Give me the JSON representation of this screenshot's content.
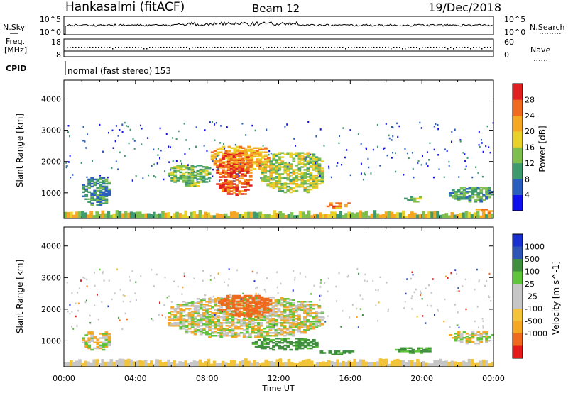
{
  "header": {
    "station": "Hankasalmi (fitACF)",
    "beam": "Beam 12",
    "date": "19/Dec/2018"
  },
  "strip_labels": {
    "n_sky": "N.Sky",
    "n_search": "N.Search",
    "freq": "Freq.",
    "freq_unit": "[MHz]",
    "nave": "Nave",
    "cpid": "CPID"
  },
  "strip_ticks": {
    "nsky_left_top": "10^5",
    "nsky_left_bottom": "10^0",
    "nsky_right_top": "10^5",
    "nsky_right_bottom": "10^0",
    "freq_left_top": "18",
    "freq_left_bottom": "8",
    "nave_right_top": "60",
    "nave_right_bottom": "0"
  },
  "cpid_text": "normal (fast stereo) 153",
  "colors": {
    "power": [
      "#1010ee",
      "#2b5fbf",
      "#3f9a6e",
      "#7fbf4f",
      "#e8d22a",
      "#f5a623",
      "#ef6a1f",
      "#e02020"
    ],
    "velocity": [
      "#e51a1a",
      "#ef6a1f",
      "#f5a623",
      "#f3c43a",
      "#c6c6c6",
      "#c6c6c6",
      "#5ec43a",
      "#3f8f3f",
      "#2f55b5",
      "#1a2fd0"
    ],
    "power_ground": "#5c8a8a"
  },
  "chart_data": [
    {
      "type": "heatmap",
      "name": "power",
      "ylabel": "Slant Range [km]",
      "xlabel": "",
      "x_ticks": [
        "00:00",
        "04:00",
        "08:00",
        "12:00",
        "16:00",
        "20:00",
        "00:00"
      ],
      "x_range_hours": [
        0,
        24
      ],
      "y_ticks": [
        "1000",
        "2000",
        "3000",
        "4000"
      ],
      "y_range_km": [
        180,
        4600
      ],
      "colorbar_label": "Power [dB]",
      "colorbar_ticks": [
        "4",
        "8",
        "12",
        "16",
        "20",
        "24",
        "28"
      ],
      "colorbar_range": [
        0,
        32
      ],
      "echo_regions": [
        {
          "t0": 1.0,
          "t1": 2.6,
          "r0": 600,
          "r1": 1500,
          "dB": 9
        },
        {
          "t0": 5.8,
          "t1": 8.2,
          "r0": 1200,
          "r1": 1900,
          "dB": 13
        },
        {
          "t0": 8.2,
          "t1": 11.5,
          "r0": 1700,
          "r1": 2500,
          "dB": 21
        },
        {
          "t0": 8.5,
          "t1": 10.5,
          "r0": 900,
          "r1": 2300,
          "dB": 27
        },
        {
          "t0": 11.0,
          "t1": 14.5,
          "r0": 1000,
          "r1": 2300,
          "dB": 16
        },
        {
          "t0": 14.5,
          "t1": 16.0,
          "r0": 500,
          "r1": 700,
          "dB": 24
        },
        {
          "t0": 19.0,
          "t1": 20.0,
          "r0": 700,
          "r1": 900,
          "dB": 12
        },
        {
          "t0": 21.5,
          "t1": 24.0,
          "r0": 700,
          "r1": 1200,
          "dB": 11
        },
        {
          "t0": 23.0,
          "t1": 24.0,
          "r0": 350,
          "r1": 500,
          "dB": 26
        }
      ]
    },
    {
      "type": "heatmap",
      "name": "velocity",
      "ylabel": "Slant Range [km]",
      "xlabel": "Time UT",
      "x_ticks": [
        "00:00",
        "04:00",
        "08:00",
        "12:00",
        "16:00",
        "20:00",
        "00:00"
      ],
      "x_range_hours": [
        0,
        24
      ],
      "y_ticks": [
        "1000",
        "2000",
        "3000",
        "4000"
      ],
      "y_range_km": [
        180,
        4600
      ],
      "colorbar_label": "Velocity [m s^-1]",
      "colorbar_ticks": [
        "1000",
        "500",
        "100",
        "25",
        "-25",
        "-100",
        "-500",
        "-1000"
      ],
      "echo_regions": [
        {
          "t0": 1.0,
          "t1": 2.6,
          "r0": 700,
          "r1": 1300,
          "v": 0
        },
        {
          "t0": 5.8,
          "t1": 14.5,
          "r0": 1100,
          "r1": 2400,
          "v": 0
        },
        {
          "t0": 8.6,
          "t1": 11.6,
          "r0": 1750,
          "r1": 2450,
          "v": -300
        },
        {
          "t0": 10.5,
          "t1": 14.2,
          "r0": 700,
          "r1": 1100,
          "v": 150
        },
        {
          "t0": 14.3,
          "t1": 16.2,
          "r0": 550,
          "r1": 700,
          "v": 150
        },
        {
          "t0": 18.5,
          "t1": 20.5,
          "r0": 600,
          "r1": 800,
          "v": 120
        },
        {
          "t0": 21.5,
          "t1": 24.0,
          "r0": 900,
          "r1": 1300,
          "v": 0
        }
      ]
    }
  ]
}
